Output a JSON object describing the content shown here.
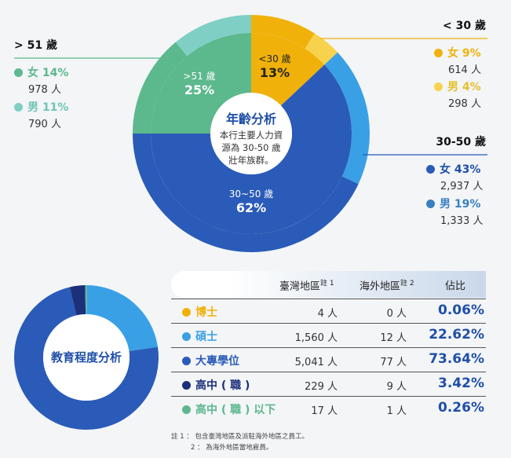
{
  "chart_data": [
    {
      "type": "pie",
      "title": "年齡分析",
      "subtitle_lines": [
        "本行主要人力資",
        "源為 30-50 歲",
        "壯年族群。"
      ],
      "inner_ring": [
        {
          "label": "<30 歲",
          "value": 13,
          "value_text": "13%",
          "color": "#f0b10a"
        },
        {
          "label": "30~50 歲",
          "value": 62,
          "value_text": "62%",
          "color": "#2a5bb8"
        },
        {
          "label": ">51 歲",
          "value": 25,
          "value_text": "25%",
          "color": "#5cb88d"
        }
      ],
      "outer_ring": [
        {
          "group": "< 30 歲",
          "gender": "女",
          "value": 9,
          "pct_text": "女 9%",
          "count_text": "614 人",
          "color": "#f0b10a"
        },
        {
          "group": "< 30 歲",
          "gender": "男",
          "value": 4,
          "pct_text": "男 4%",
          "count_text": "298 人",
          "color": "#f7d24c"
        },
        {
          "group": "30-50 歲",
          "gender": "男",
          "value": 19,
          "pct_text": "男 19%",
          "count_text": "1,333 人",
          "color": "#3aa0e6"
        },
        {
          "group": "30-50 歲",
          "gender": "女",
          "value": 43,
          "pct_text": "女 43%",
          "count_text": "2,937 人",
          "color": "#2a5bb8"
        },
        {
          "group": "> 51 歲",
          "gender": "女",
          "value": 14,
          "pct_text": "女 14%",
          "count_text": "978 人",
          "color": "#5cb88d"
        },
        {
          "group": "> 51 歲",
          "gender": "男",
          "value": 11,
          "pct_text": "男 11%",
          "count_text": "790 人",
          "color": "#7fcfc4"
        }
      ],
      "group_labels": {
        "under30": "< 30 歲",
        "mid": "30-50 歲",
        "over51": "> 51 歲"
      }
    },
    {
      "type": "pie",
      "title": "教育程度分析",
      "slices": [
        {
          "label": "博士",
          "value": 0.06,
          "color": "#f0b10a"
        },
        {
          "label": "碩士",
          "value": 22.62,
          "color": "#3aa0e6"
        },
        {
          "label": "大專學位",
          "value": 73.64,
          "color": "#2a5bb8"
        },
        {
          "label": "高中 ( 職 )",
          "value": 3.42,
          "color": "#1b2f7a"
        },
        {
          "label": "高中 ( 職 ) 以下",
          "value": 0.26,
          "color": "#5cb88d"
        }
      ]
    },
    {
      "type": "table",
      "columns": [
        {
          "text": "臺灣地區",
          "note": "註 1"
        },
        {
          "text": "海外地區",
          "note": "註 2"
        },
        {
          "text": "佔比",
          "note": ""
        }
      ],
      "rows": [
        {
          "label": "博士",
          "tw": "4 人",
          "ov": "0 人",
          "pct": "0.06%",
          "color": "#f0b10a"
        },
        {
          "label": "碩士",
          "tw": "1,560 人",
          "ov": "12 人",
          "pct": "22.62%",
          "color": "#3aa0e6"
        },
        {
          "label": "大專學位",
          "tw": "5,041 人",
          "ov": "77 人",
          "pct": "73.64%",
          "color": "#2a5bb8"
        },
        {
          "label": "高中 ( 職 )",
          "tw": "229 人",
          "ov": "9 人",
          "pct": "3.42%",
          "color": "#1b2f7a"
        },
        {
          "label": "高中 ( 職 ) 以下",
          "tw": "17 人",
          "ov": "1 人",
          "pct": "0.26%",
          "color": "#5cb88d"
        }
      ]
    }
  ],
  "notes": [
    "註 1 ： 包含臺灣地區及派駐海外地區之員工。",
    "2 ： 為海外地區當地雇員。"
  ]
}
